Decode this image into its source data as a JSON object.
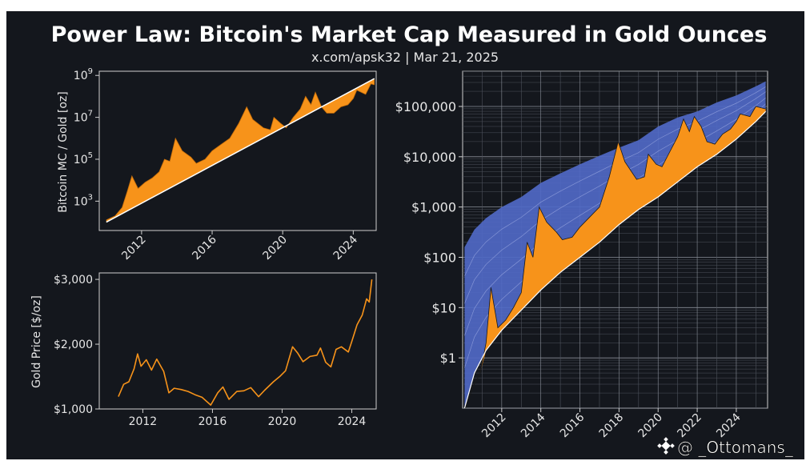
{
  "header": {
    "title": "Power Law: Bitcoin's Market Cap Measured in Gold Ounces",
    "subtitle": "x.com/apsk32 | Mar 21, 2025"
  },
  "watermark": {
    "text": "@ _Ottomans_",
    "icon": "binance-diamond-icon"
  },
  "colors": {
    "background": "#14171d",
    "orange": "#f7931a",
    "blue": "#5069c6",
    "line": "#ffffff",
    "axis": "#cfcfcf"
  },
  "chart_data": [
    {
      "id": "btc_gold_ratio",
      "type": "area",
      "ylabel": "Bitcoin MC / Gold [oz]",
      "yscale": "log",
      "y_ticks": [
        {
          "exp": 3,
          "label": "10",
          "sup": "3"
        },
        {
          "exp": 5,
          "label": "10",
          "sup": "5"
        },
        {
          "exp": 7,
          "label": "10",
          "sup": "7"
        },
        {
          "exp": 9,
          "label": "10",
          "sup": "9"
        }
      ],
      "x_ticks": [
        "2012",
        "2016",
        "2020",
        "2024"
      ],
      "xlim": [
        2009.6,
        2025.3
      ],
      "ylim_log10": [
        1.6,
        9.2
      ],
      "grid": false,
      "power_law": {
        "x": [
          2010.0,
          2025.2
        ],
        "log10_y": [
          2.0,
          8.85
        ]
      },
      "series_log10": {
        "x": [
          2010.0,
          2010.5,
          2010.9,
          2011.2,
          2011.45,
          2011.8,
          2012.2,
          2012.6,
          2013.0,
          2013.3,
          2013.6,
          2013.92,
          2014.3,
          2014.8,
          2015.1,
          2015.6,
          2016.0,
          2016.5,
          2017.0,
          2017.5,
          2017.96,
          2018.3,
          2018.9,
          2019.3,
          2019.5,
          2019.9,
          2020.2,
          2020.6,
          2021.0,
          2021.3,
          2021.6,
          2021.85,
          2022.2,
          2022.5,
          2022.9,
          2023.3,
          2023.7,
          2024.0,
          2024.2,
          2024.7,
          2025.0,
          2025.2
        ],
        "log10_y": [
          2.1,
          2.3,
          2.7,
          3.5,
          4.2,
          3.6,
          3.9,
          4.1,
          4.4,
          5.0,
          4.9,
          6.0,
          5.4,
          5.1,
          4.8,
          5.0,
          5.4,
          5.7,
          6.0,
          6.7,
          7.5,
          6.9,
          6.5,
          6.4,
          7.0,
          6.7,
          6.5,
          7.0,
          7.4,
          8.0,
          7.6,
          8.2,
          7.5,
          7.2,
          7.2,
          7.5,
          7.6,
          7.9,
          8.3,
          8.1,
          8.6,
          8.55
        ]
      }
    },
    {
      "id": "gold_price",
      "type": "line",
      "ylabel": "Gold Price [$/oz]",
      "y_ticks": [
        {
          "value": 1000,
          "label": "$1,000"
        },
        {
          "value": 2000,
          "label": "$2,000"
        },
        {
          "value": 3000,
          "label": "$3,000"
        }
      ],
      "x_ticks": [
        "2012",
        "2016",
        "2020",
        "2024"
      ],
      "xlim": [
        2009.5,
        2025.4
      ],
      "ylim": [
        1000,
        3100
      ],
      "grid": false,
      "series": {
        "x": [
          2010.6,
          2010.9,
          2011.2,
          2011.5,
          2011.7,
          2011.9,
          2012.2,
          2012.5,
          2012.8,
          2013.2,
          2013.5,
          2013.8,
          2014.2,
          2014.6,
          2015.0,
          2015.4,
          2015.9,
          2016.3,
          2016.6,
          2016.95,
          2017.4,
          2017.8,
          2018.2,
          2018.65,
          2019.0,
          2019.5,
          2019.9,
          2020.2,
          2020.6,
          2020.9,
          2021.2,
          2021.6,
          2022.0,
          2022.2,
          2022.5,
          2022.8,
          2023.1,
          2023.4,
          2023.8,
          2024.0,
          2024.3,
          2024.6,
          2024.85,
          2025.0,
          2025.15
        ],
        "y": [
          1190,
          1380,
          1420,
          1620,
          1850,
          1660,
          1760,
          1600,
          1770,
          1580,
          1250,
          1320,
          1300,
          1270,
          1220,
          1180,
          1060,
          1250,
          1340,
          1150,
          1270,
          1280,
          1330,
          1190,
          1290,
          1420,
          1510,
          1590,
          1960,
          1860,
          1730,
          1810,
          1830,
          1940,
          1720,
          1650,
          1920,
          1960,
          1880,
          2040,
          2300,
          2450,
          2700,
          2650,
          3000
        ]
      }
    },
    {
      "id": "btc_price_band",
      "type": "area",
      "yscale": "log",
      "y_ticks": [
        {
          "value": 1,
          "label": "$1"
        },
        {
          "value": 10,
          "label": "$10"
        },
        {
          "value": 100,
          "label": "$100"
        },
        {
          "value": 1000,
          "label": "$1,000"
        },
        {
          "value": 10000,
          "label": "$10,000"
        },
        {
          "value": 100000,
          "label": "$100,000"
        }
      ],
      "x_ticks": [
        "2012",
        "2014",
        "2016",
        "2018",
        "2020",
        "2022",
        "2024"
      ],
      "xlim": [
        2010.0,
        2025.6
      ],
      "ylim_log10": [
        -1.0,
        5.7
      ],
      "grid": true,
      "band_upper": {
        "x": [
          2010.1,
          2010.6,
          2011.2,
          2012.0,
          2013.0,
          2014.0,
          2015.0,
          2016.0,
          2017.0,
          2018.0,
          2019.0,
          2020.0,
          2021.0,
          2022.0,
          2023.0,
          2024.0,
          2025.0,
          2025.5
        ],
        "log10_y": [
          2.2,
          2.55,
          2.78,
          3.0,
          3.2,
          3.48,
          3.67,
          3.85,
          4.02,
          4.18,
          4.33,
          4.6,
          4.78,
          4.9,
          5.08,
          5.22,
          5.4,
          5.5
        ]
      },
      "band_lower": {
        "x": [
          2010.1,
          2010.6,
          2011.2,
          2012.0,
          2013.0,
          2014.0,
          2015.0,
          2016.0,
          2017.0,
          2018.0,
          2019.0,
          2020.0,
          2021.0,
          2022.0,
          2023.0,
          2024.0,
          2025.0,
          2025.5
        ],
        "log10_y": [
          -1.0,
          -0.3,
          0.15,
          0.55,
          0.95,
          1.35,
          1.7,
          2.0,
          2.3,
          2.65,
          2.95,
          3.2,
          3.5,
          3.8,
          4.05,
          4.35,
          4.7,
          4.9
        ]
      },
      "price": {
        "x": [
          2010.15,
          2010.5,
          2010.9,
          2011.2,
          2011.45,
          2011.8,
          2012.2,
          2012.6,
          2013.0,
          2013.3,
          2013.6,
          2013.92,
          2014.3,
          2014.8,
          2015.1,
          2015.6,
          2016.0,
          2016.5,
          2017.0,
          2017.5,
          2017.96,
          2018.3,
          2018.9,
          2019.3,
          2019.5,
          2019.9,
          2020.2,
          2020.6,
          2021.0,
          2021.3,
          2021.6,
          2021.85,
          2022.2,
          2022.5,
          2022.9,
          2023.3,
          2023.7,
          2024.0,
          2024.2,
          2024.7,
          2025.0,
          2025.5
        ],
        "log10_y": [
          -1.0,
          -0.6,
          -0.3,
          0.3,
          1.4,
          0.6,
          0.75,
          1.0,
          1.3,
          2.3,
          2.0,
          3.0,
          2.7,
          2.5,
          2.35,
          2.4,
          2.6,
          2.8,
          3.0,
          3.6,
          4.3,
          3.9,
          3.55,
          3.6,
          4.05,
          3.85,
          3.8,
          4.1,
          4.4,
          4.75,
          4.5,
          4.8,
          4.6,
          4.3,
          4.25,
          4.45,
          4.55,
          4.7,
          4.85,
          4.8,
          5.0,
          4.95
        ]
      }
    }
  ]
}
